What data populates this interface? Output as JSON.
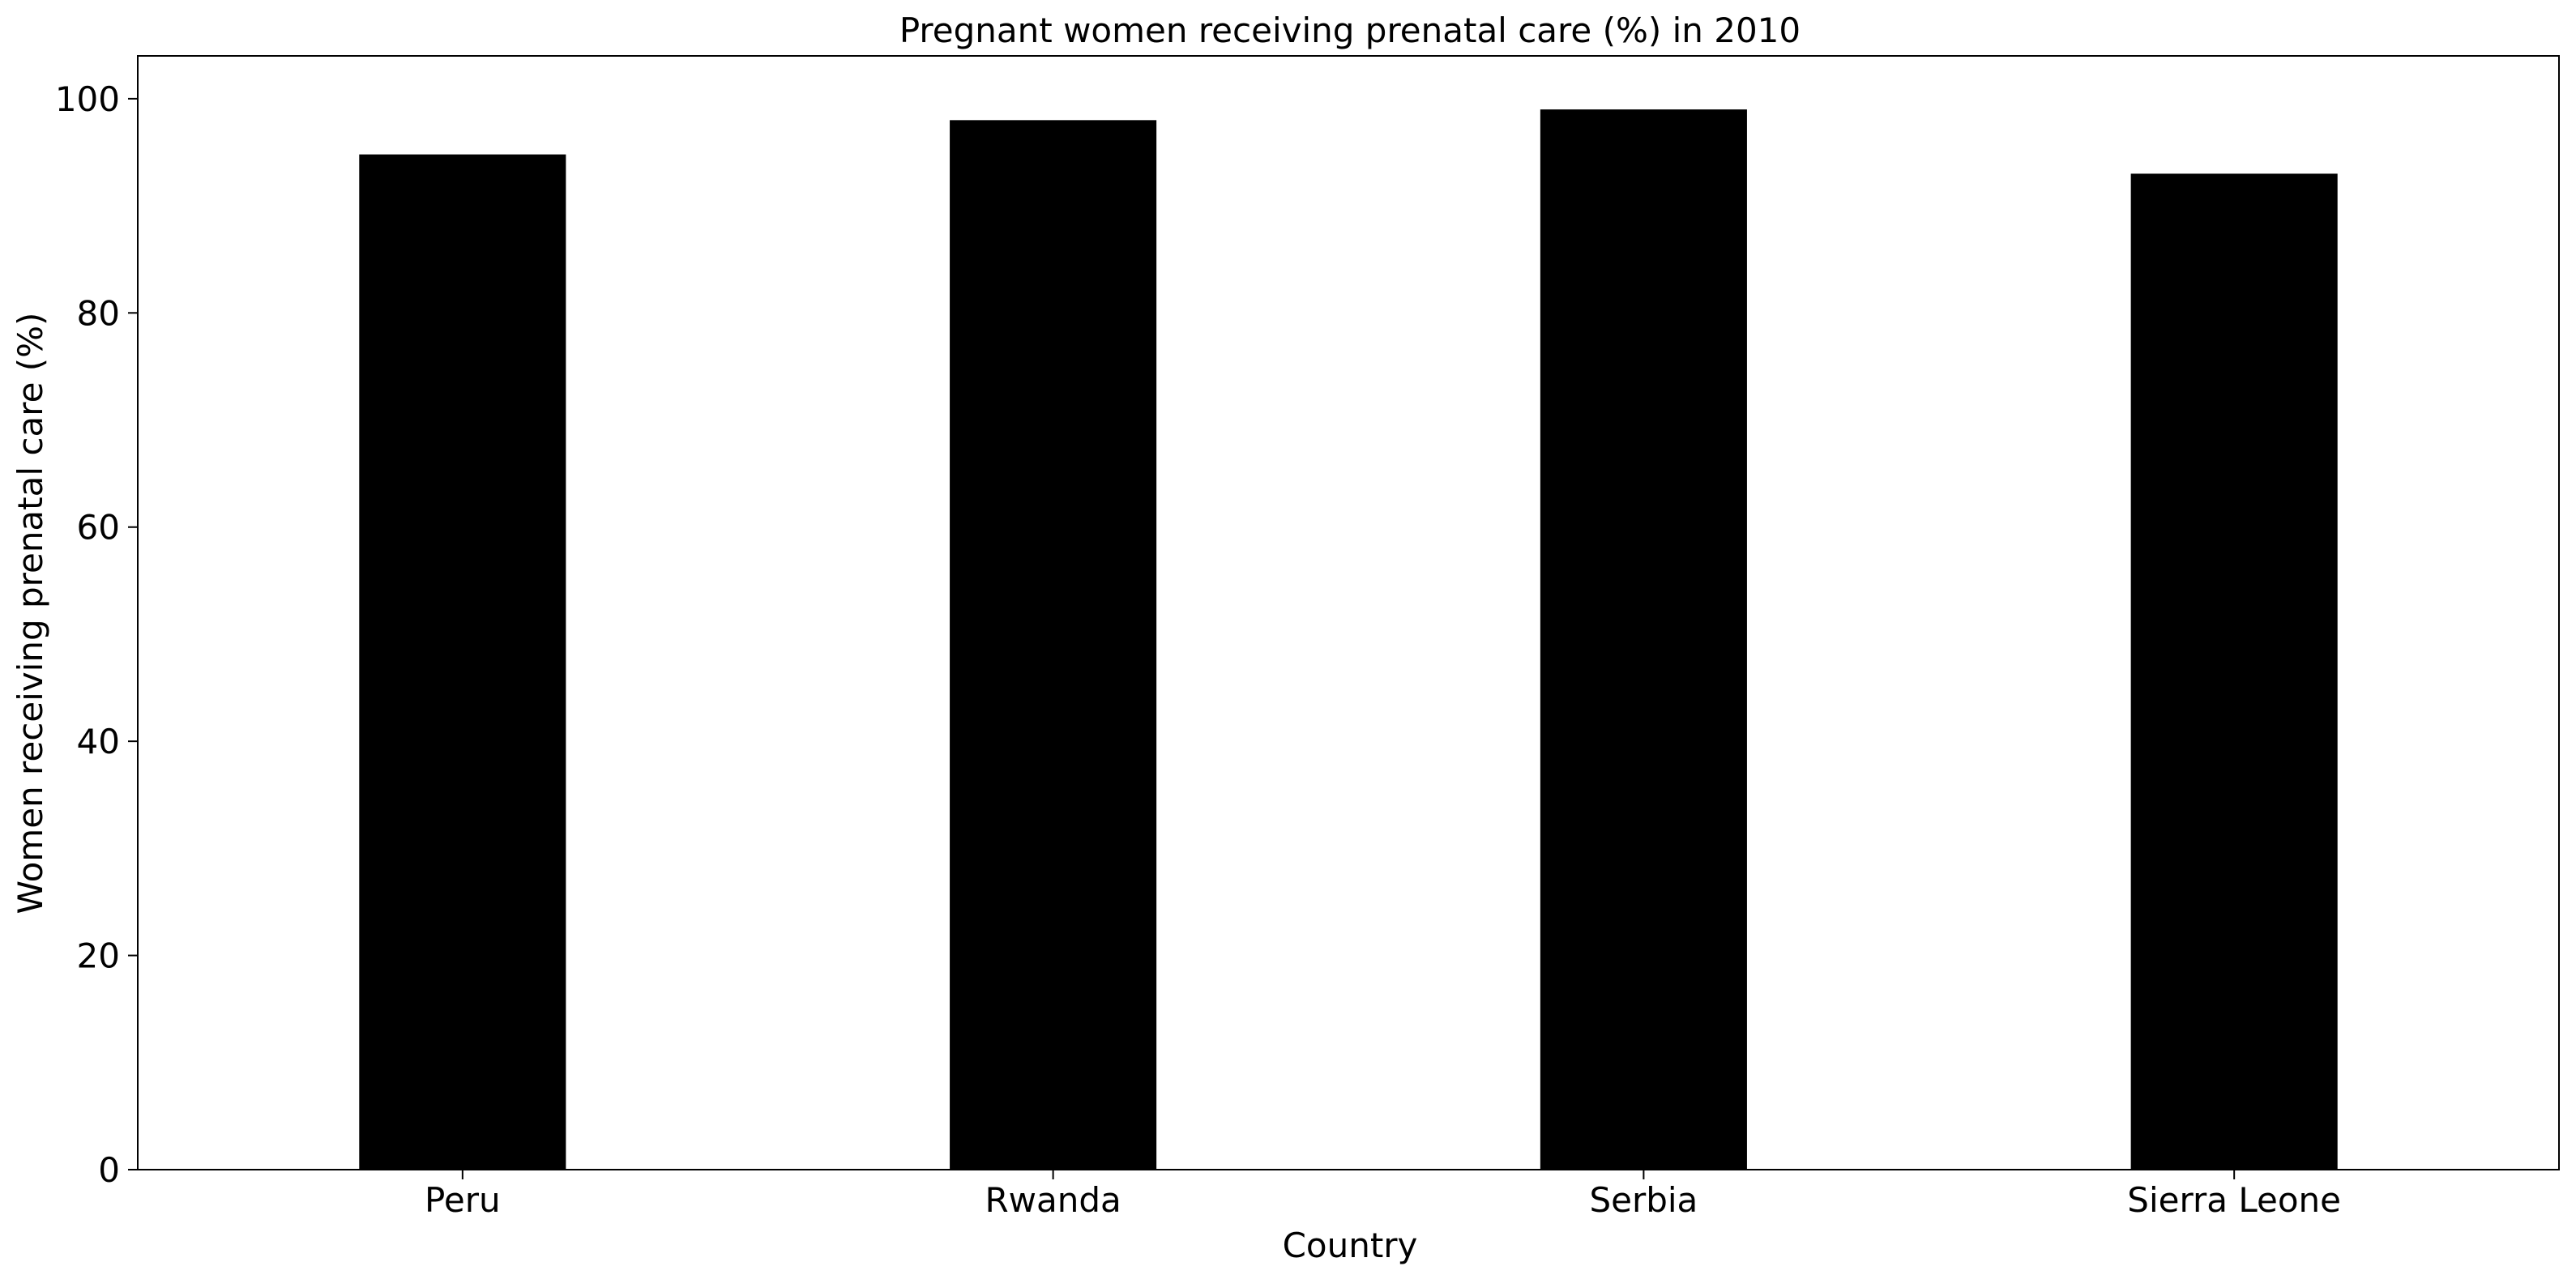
{
  "chart_data": {
    "type": "bar",
    "title": "Pregnant women receiving prenatal care (%) in 2010",
    "xlabel": "Country",
    "ylabel": "Women receiving prenatal care (%)",
    "categories": [
      "Peru",
      "Rwanda",
      "Serbia",
      "Sierra Leone"
    ],
    "values": [
      94.8,
      98.0,
      99.0,
      93.0
    ],
    "ylim": [
      0,
      104
    ],
    "yticks": [
      0,
      20,
      40,
      60,
      80,
      100
    ],
    "ytick_labels": [
      "0",
      "20",
      "40",
      "60",
      "80",
      "100"
    ],
    "grid": false,
    "legend": "none",
    "bar_color": "#000000"
  }
}
